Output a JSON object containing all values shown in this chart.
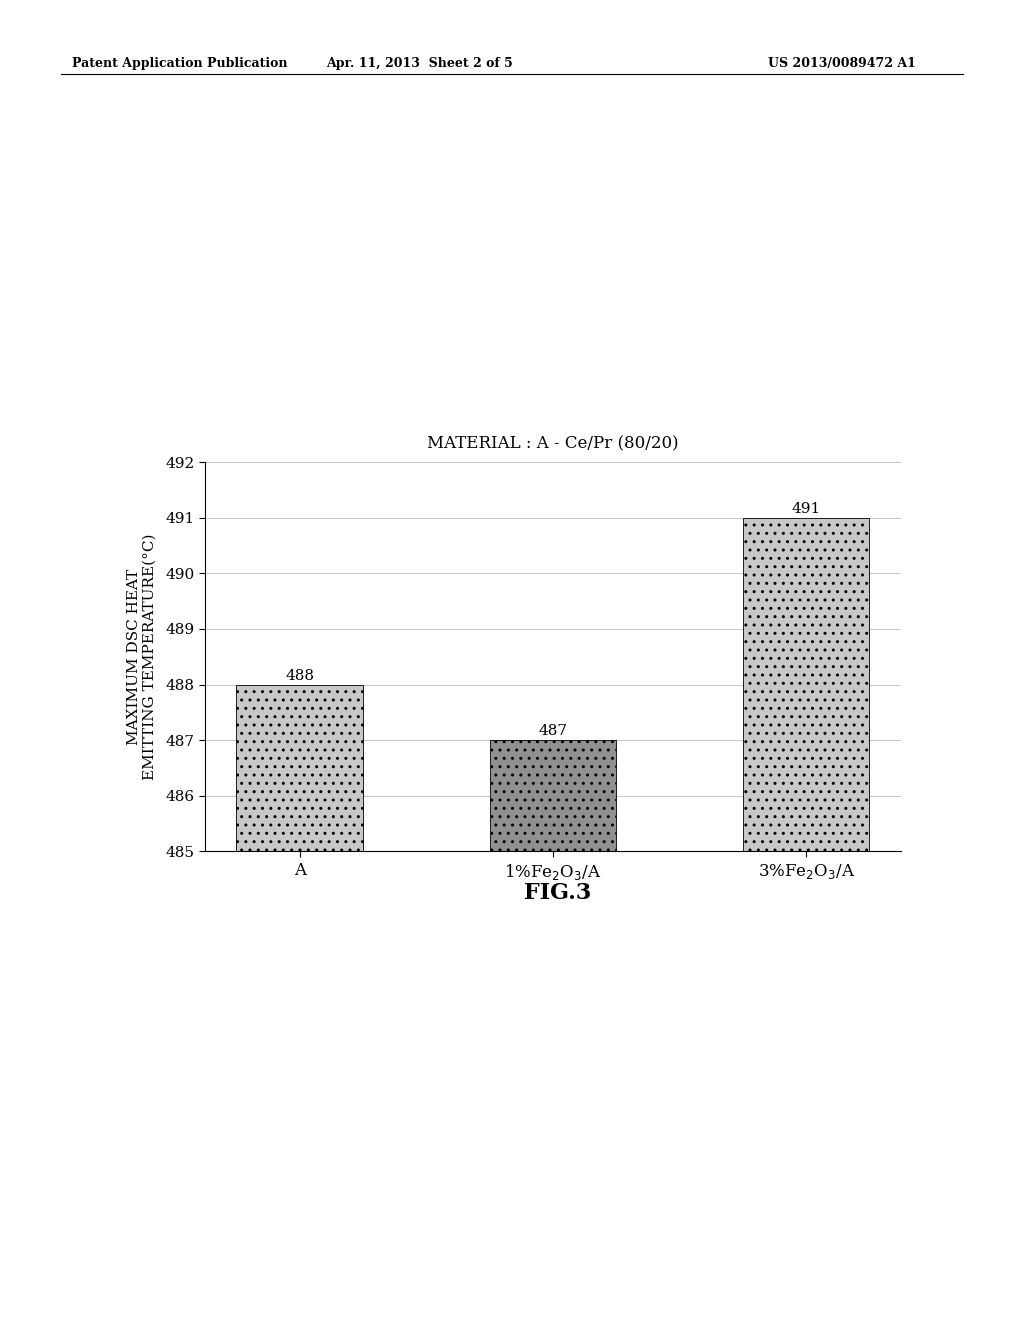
{
  "title": "MATERIAL : A - Ce/Pr (80/20)",
  "categories": [
    "A",
    "1%Fe₂O₃/A",
    "3%Fe₂O₃/A"
  ],
  "values": [
    488,
    487,
    491
  ],
  "ylim": [
    485,
    492
  ],
  "yticks": [
    485,
    486,
    487,
    488,
    489,
    490,
    491,
    492
  ],
  "ylabel_line1": "MAXIMUM DSC HEAT",
  "ylabel_line2": "EMITTING TEMPERATURE(°C)",
  "fig_caption": "FIG.3",
  "bar_color_light": "#c8c8c8",
  "bar_color_dark": "#909090",
  "bar_edgecolor": "#000000",
  "header_left": "Patent Application Publication",
  "header_center": "Apr. 11, 2013  Sheet 2 of 5",
  "header_right": "US 2013/0089472 A1",
  "background_color": "#ffffff",
  "title_fontsize": 12,
  "axis_fontsize": 10,
  "tick_fontsize": 11,
  "label_fontsize": 11,
  "caption_fontsize": 16,
  "header_fontsize": 9
}
